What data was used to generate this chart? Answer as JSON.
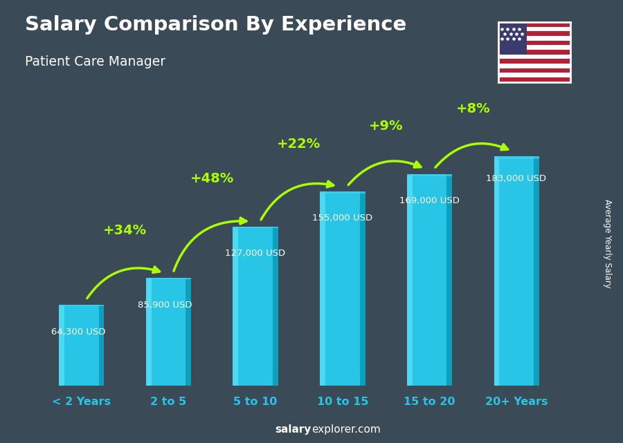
{
  "title": "Salary Comparison By Experience",
  "subtitle": "Patient Care Manager",
  "categories": [
    "< 2 Years",
    "2 to 5",
    "5 to 10",
    "10 to 15",
    "15 to 20",
    "20+ Years"
  ],
  "values": [
    64300,
    85900,
    127000,
    155000,
    169000,
    183000
  ],
  "value_labels": [
    "64,300 USD",
    "85,900 USD",
    "127,000 USD",
    "155,000 USD",
    "169,000 USD",
    "183,000 USD"
  ],
  "pct_changes": [
    "+34%",
    "+48%",
    "+22%",
    "+9%",
    "+8%"
  ],
  "bar_color_face": "#29c5e6",
  "bar_color_left": "#55ddf5",
  "bar_color_right": "#0899b8",
  "bar_color_top": "#3dd4f0",
  "background_color": "#3a4a56",
  "title_color": "#ffffff",
  "subtitle_color": "#ffffff",
  "value_label_color": "#ffffff",
  "pct_color": "#aaff00",
  "axis_label_color": "#29c5e6",
  "footer_bold": "salary",
  "footer_normal": "explorer.com",
  "ylabel": "Average Yearly Salary",
  "ylim": [
    0,
    230000
  ],
  "bar_width": 0.52,
  "arrow_color": "#aaff00",
  "arrow_lw": 2.5
}
